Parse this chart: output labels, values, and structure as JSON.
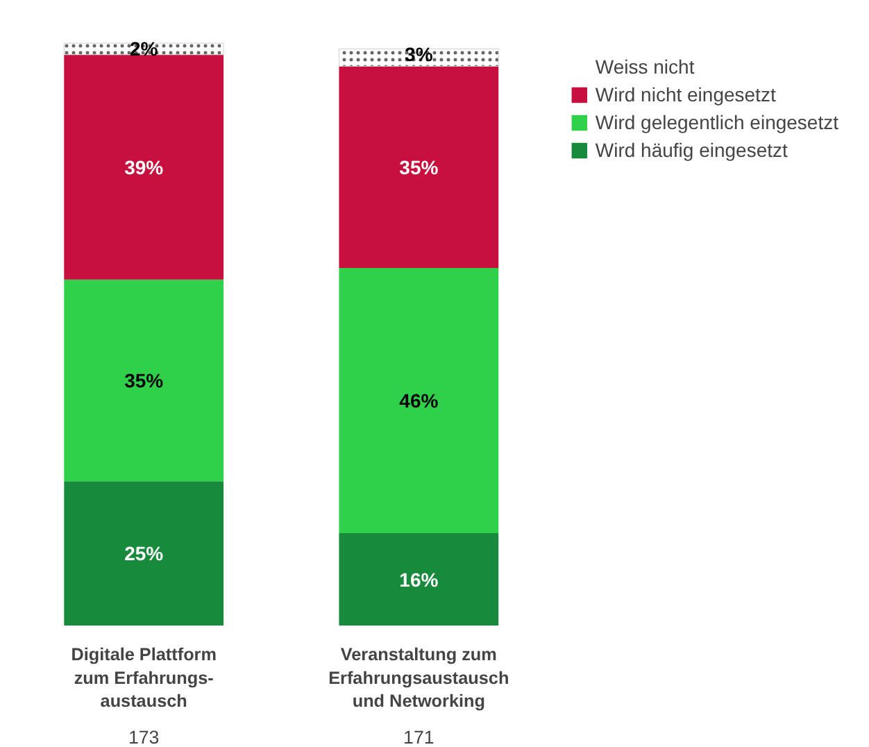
{
  "chart_data": {
    "type": "bar",
    "stacked": true,
    "legend": "top right",
    "categories": [
      "Digitale Plattform\nzum Erfahrungs-\naustausch",
      "Veranstaltung zum\nErfahrungsaustausch\nund Networking"
    ],
    "annotations": [
      "173",
      "171"
    ],
    "series": [
      {
        "name": "Wird häufig eingesetzt",
        "color": "#178a3c",
        "values": [
          25,
          16
        ],
        "value_labels": [
          "25%",
          "16%"
        ]
      },
      {
        "name": "Wird gelegentlich eingesetzt",
        "color": "#2fd04a",
        "values": [
          35,
          46
        ],
        "value_labels": [
          "35%",
          "46%"
        ]
      },
      {
        "name": "Wird nicht eingesetzt",
        "color": "#c8103e",
        "values": [
          39,
          35
        ],
        "value_labels": [
          "39%",
          "35%"
        ]
      },
      {
        "name": "Weiss nicht",
        "color": "#ffffff",
        "values": [
          2,
          3
        ],
        "value_labels": [
          "2%",
          "3%"
        ]
      }
    ]
  }
}
